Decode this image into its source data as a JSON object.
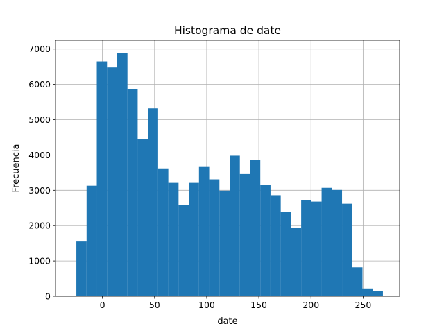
{
  "chart_data": {
    "type": "bar",
    "title": "Histograma de date",
    "xlabel": "date",
    "ylabel": "Frecuencia",
    "bar_color": "#1f77b4",
    "grid": true,
    "xlim": [
      -45,
      285
    ],
    "ylim": [
      0,
      7250
    ],
    "xticks": [
      0,
      50,
      100,
      150,
      200,
      250
    ],
    "yticks": [
      0,
      1000,
      2000,
      3000,
      4000,
      5000,
      6000,
      7000
    ],
    "bins": [
      {
        "x0": -25.0,
        "x1": -15.2,
        "count": 1550
      },
      {
        "x0": -15.2,
        "x1": -5.4,
        "count": 3130
      },
      {
        "x0": -5.4,
        "x1": 4.4,
        "count": 6650
      },
      {
        "x0": 4.4,
        "x1": 14.2,
        "count": 6480
      },
      {
        "x0": 14.2,
        "x1": 24.0,
        "count": 6880
      },
      {
        "x0": 24.0,
        "x1": 33.8,
        "count": 5860
      },
      {
        "x0": 33.8,
        "x1": 43.6,
        "count": 4440
      },
      {
        "x0": 43.6,
        "x1": 53.4,
        "count": 5320
      },
      {
        "x0": 53.4,
        "x1": 63.2,
        "count": 3620
      },
      {
        "x0": 63.2,
        "x1": 73.0,
        "count": 3210
      },
      {
        "x0": 73.0,
        "x1": 82.8,
        "count": 2590
      },
      {
        "x0": 82.8,
        "x1": 92.6,
        "count": 3210
      },
      {
        "x0": 92.6,
        "x1": 102.4,
        "count": 3680
      },
      {
        "x0": 102.4,
        "x1": 112.2,
        "count": 3310
      },
      {
        "x0": 112.2,
        "x1": 122.0,
        "count": 2990
      },
      {
        "x0": 122.0,
        "x1": 131.8,
        "count": 3980
      },
      {
        "x0": 131.8,
        "x1": 141.6,
        "count": 3460
      },
      {
        "x0": 141.6,
        "x1": 151.4,
        "count": 3860
      },
      {
        "x0": 151.4,
        "x1": 161.2,
        "count": 3160
      },
      {
        "x0": 161.2,
        "x1": 171.0,
        "count": 2860
      },
      {
        "x0": 171.0,
        "x1": 180.8,
        "count": 2380
      },
      {
        "x0": 180.8,
        "x1": 190.6,
        "count": 1940
      },
      {
        "x0": 190.6,
        "x1": 200.4,
        "count": 2730
      },
      {
        "x0": 200.4,
        "x1": 210.2,
        "count": 2680
      },
      {
        "x0": 210.2,
        "x1": 220.0,
        "count": 3070
      },
      {
        "x0": 220.0,
        "x1": 229.8,
        "count": 3010
      },
      {
        "x0": 229.8,
        "x1": 239.6,
        "count": 2620
      },
      {
        "x0": 239.6,
        "x1": 249.4,
        "count": 820
      },
      {
        "x0": 249.4,
        "x1": 259.2,
        "count": 220
      },
      {
        "x0": 259.2,
        "x1": 269.0,
        "count": 140
      }
    ]
  }
}
